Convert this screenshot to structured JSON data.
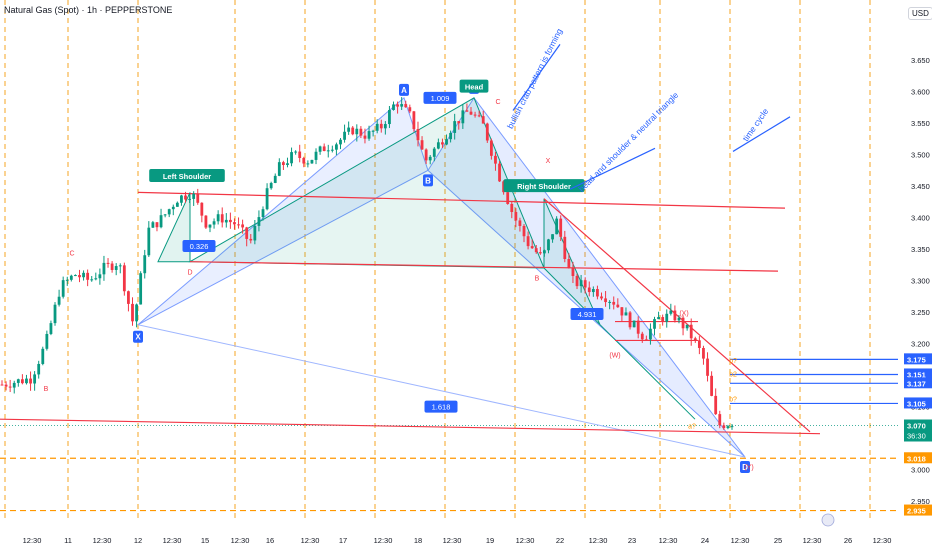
{
  "header": {
    "title": "Natural Gas (Spot) · 1h · PEPPERSTONE",
    "currency": "USD"
  },
  "chart_data": {
    "type": "candlestick",
    "price_axis": {
      "ylim": [
        2.92,
        3.72
      ],
      "ticks": [
        "3.650",
        "3.600",
        "3.550",
        "3.500",
        "3.450",
        "3.400",
        "3.350",
        "3.300",
        "3.250",
        "3.200",
        "3.150",
        "3.100",
        "3.050",
        "3.000",
        "2.950"
      ]
    },
    "time_axis": {
      "ticks": [
        "12:30",
        "11",
        "12:30",
        "12",
        "12:30",
        "15",
        "12:30",
        "16",
        "12:30",
        "17",
        "12:30",
        "18",
        "12:30",
        "19",
        "12:30",
        "22",
        "12:30",
        "23",
        "12:30",
        "24",
        "12:30",
        "25",
        "12:30",
        "26",
        "12:30"
      ]
    },
    "price_labels": [
      {
        "value": "3.175",
        "color": "#2962ff"
      },
      {
        "value": "3.151",
        "color": "#2962ff"
      },
      {
        "value": "3.137",
        "color": "#2962ff"
      },
      {
        "value": "3.105",
        "color": "#2962ff"
      },
      {
        "value": "3.070",
        "color": "#089981",
        "sub": "36:30"
      },
      {
        "value": "3.018",
        "color": "#ff9800"
      },
      {
        "value": "2.935",
        "color": "#ff9800"
      }
    ],
    "last_price": 3.07,
    "price_path": [
      [
        0,
        3.135
      ],
      [
        1,
        3.14
      ],
      [
        2,
        3.145
      ],
      [
        3,
        3.2
      ],
      [
        4,
        3.29
      ],
      [
        5,
        3.31
      ],
      [
        6,
        3.3
      ],
      [
        7,
        3.32
      ],
      [
        8,
        3.33
      ],
      [
        9,
        3.23
      ],
      [
        10,
        3.38
      ],
      [
        11,
        3.4
      ],
      [
        12,
        3.43
      ],
      [
        13,
        3.44
      ],
      [
        14,
        3.39
      ],
      [
        15,
        3.4
      ],
      [
        16,
        3.39
      ],
      [
        17,
        3.36
      ],
      [
        18,
        3.43
      ],
      [
        19,
        3.48
      ],
      [
        20,
        3.5
      ],
      [
        21,
        3.49
      ],
      [
        22,
        3.51
      ],
      [
        23,
        3.52
      ],
      [
        24,
        3.54
      ],
      [
        25,
        3.53
      ],
      [
        26,
        3.545
      ],
      [
        27,
        3.585
      ],
      [
        28,
        3.56
      ],
      [
        29,
        3.49
      ],
      [
        30,
        3.52
      ],
      [
        31,
        3.55
      ],
      [
        32,
        3.57
      ],
      [
        33,
        3.545
      ],
      [
        34,
        3.47
      ],
      [
        35,
        3.405
      ],
      [
        36,
        3.36
      ],
      [
        37,
        3.335
      ],
      [
        38,
        3.395
      ],
      [
        39,
        3.3
      ],
      [
        40,
        3.29
      ],
      [
        41,
        3.28
      ],
      [
        42,
        3.265
      ],
      [
        43,
        3.235
      ],
      [
        44,
        3.21
      ],
      [
        45,
        3.24
      ],
      [
        46,
        3.245
      ],
      [
        47,
        3.22
      ],
      [
        48,
        3.18
      ],
      [
        49,
        3.07
      ],
      [
        50,
        3.075
      ]
    ],
    "annotations": {
      "pattern_points": [
        "X",
        "A",
        "B",
        "C",
        "D"
      ],
      "texts": [
        "Left Shoulder",
        "Head",
        "Right Shoulder",
        "bullish crab pattern is forming",
        "head and shoulder & neutral triangle",
        "time cycle"
      ],
      "ratios": [
        "1.009",
        "0.326",
        "4.931",
        "1.618"
      ],
      "wave_labels": [
        "(X)",
        "(W)",
        "(Y)",
        "X",
        "B",
        "C",
        "D",
        "B",
        "C",
        "b?",
        "b2",
        "b?",
        "a?"
      ]
    }
  }
}
